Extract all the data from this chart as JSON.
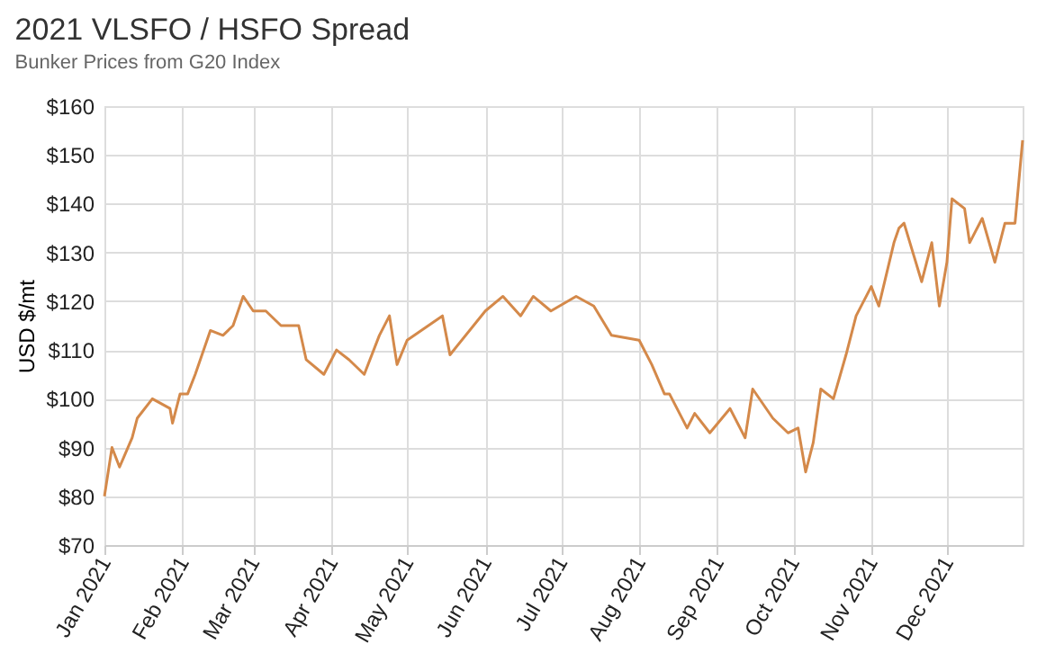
{
  "chart_data": {
    "type": "line",
    "title": "2021 VLSFO / HSFO Spread",
    "subtitle": "Bunker Prices from G20 Index",
    "ylabel": "USD $/mt",
    "x": [
      "2021-01-01",
      "2021-01-04",
      "2021-01-07",
      "2021-01-12",
      "2021-01-14",
      "2021-01-20",
      "2021-01-27",
      "2021-01-28",
      "2021-01-31",
      "2021-02-03",
      "2021-02-06",
      "2021-02-12",
      "2021-02-17",
      "2021-02-21",
      "2021-02-25",
      "2021-03-01",
      "2021-03-06",
      "2021-03-12",
      "2021-03-19",
      "2021-03-22",
      "2021-03-29",
      "2021-04-03",
      "2021-04-08",
      "2021-04-14",
      "2021-04-20",
      "2021-04-24",
      "2021-04-27",
      "2021-05-01",
      "2021-05-15",
      "2021-05-18",
      "2021-06-01",
      "2021-06-08",
      "2021-06-15",
      "2021-06-20",
      "2021-06-27",
      "2021-07-07",
      "2021-07-14",
      "2021-07-21",
      "2021-08-01",
      "2021-08-06",
      "2021-08-11",
      "2021-08-13",
      "2021-08-20",
      "2021-08-23",
      "2021-08-29",
      "2021-09-06",
      "2021-09-12",
      "2021-09-15",
      "2021-09-23",
      "2021-09-29",
      "2021-10-03",
      "2021-10-06",
      "2021-10-09",
      "2021-10-12",
      "2021-10-17",
      "2021-10-22",
      "2021-10-26",
      "2021-11-01",
      "2021-11-04",
      "2021-11-10",
      "2021-11-12",
      "2021-11-14",
      "2021-11-21",
      "2021-11-25",
      "2021-11-28",
      "2021-12-01",
      "2021-12-03",
      "2021-12-08",
      "2021-12-10",
      "2021-12-15",
      "2021-12-20",
      "2021-12-24",
      "2021-12-28",
      "2021-12-31"
    ],
    "series": [
      {
        "color": "#d4894a",
        "values": [
          80,
          90,
          86,
          92,
          96,
          100,
          98,
          95,
          101,
          101,
          105,
          114,
          113,
          115,
          121,
          118,
          118,
          115,
          115,
          108,
          105,
          110,
          108,
          105,
          113,
          117,
          107,
          112,
          117,
          109,
          118,
          121,
          117,
          121,
          118,
          121,
          119,
          113,
          112,
          107,
          101,
          101,
          94,
          97,
          93,
          98,
          92,
          102,
          96,
          93,
          94,
          85,
          91,
          102,
          100,
          109,
          117,
          123,
          119,
          132,
          135,
          136,
          124,
          132,
          119,
          128,
          141,
          139,
          132,
          137,
          128,
          136,
          136,
          153
        ]
      }
    ],
    "xlim": [
      "2021-01-01",
      "2021-12-31"
    ],
    "xticks": [
      {
        "value": "2021-01-01",
        "label": "Jan 2021"
      },
      {
        "value": "2021-02-01",
        "label": "Feb 2021"
      },
      {
        "value": "2021-03-01",
        "label": "Mar 2021"
      },
      {
        "value": "2021-04-01",
        "label": "Apr 2021"
      },
      {
        "value": "2021-05-01",
        "label": "May 2021"
      },
      {
        "value": "2021-06-01",
        "label": "Jun 2021"
      },
      {
        "value": "2021-07-01",
        "label": "Jul 2021"
      },
      {
        "value": "2021-08-01",
        "label": "Aug 2021"
      },
      {
        "value": "2021-09-01",
        "label": "Sep 2021"
      },
      {
        "value": "2021-10-01",
        "label": "Oct 2021"
      },
      {
        "value": "2021-11-01",
        "label": "Nov 2021"
      },
      {
        "value": "2021-12-01",
        "label": "Dec 2021"
      }
    ],
    "ylim": [
      70,
      160
    ],
    "yticks": [
      {
        "value": 70,
        "label": "$70"
      },
      {
        "value": 80,
        "label": "$80"
      },
      {
        "value": 90,
        "label": "$90"
      },
      {
        "value": 100,
        "label": "$100"
      },
      {
        "value": 110,
        "label": "$110"
      },
      {
        "value": 120,
        "label": "$120"
      },
      {
        "value": 130,
        "label": "$130"
      },
      {
        "value": 140,
        "label": "$140"
      },
      {
        "value": 150,
        "label": "$150"
      },
      {
        "value": 160,
        "label": "$160"
      }
    ],
    "grid": true,
    "marker": "none",
    "line_style": "solid"
  }
}
